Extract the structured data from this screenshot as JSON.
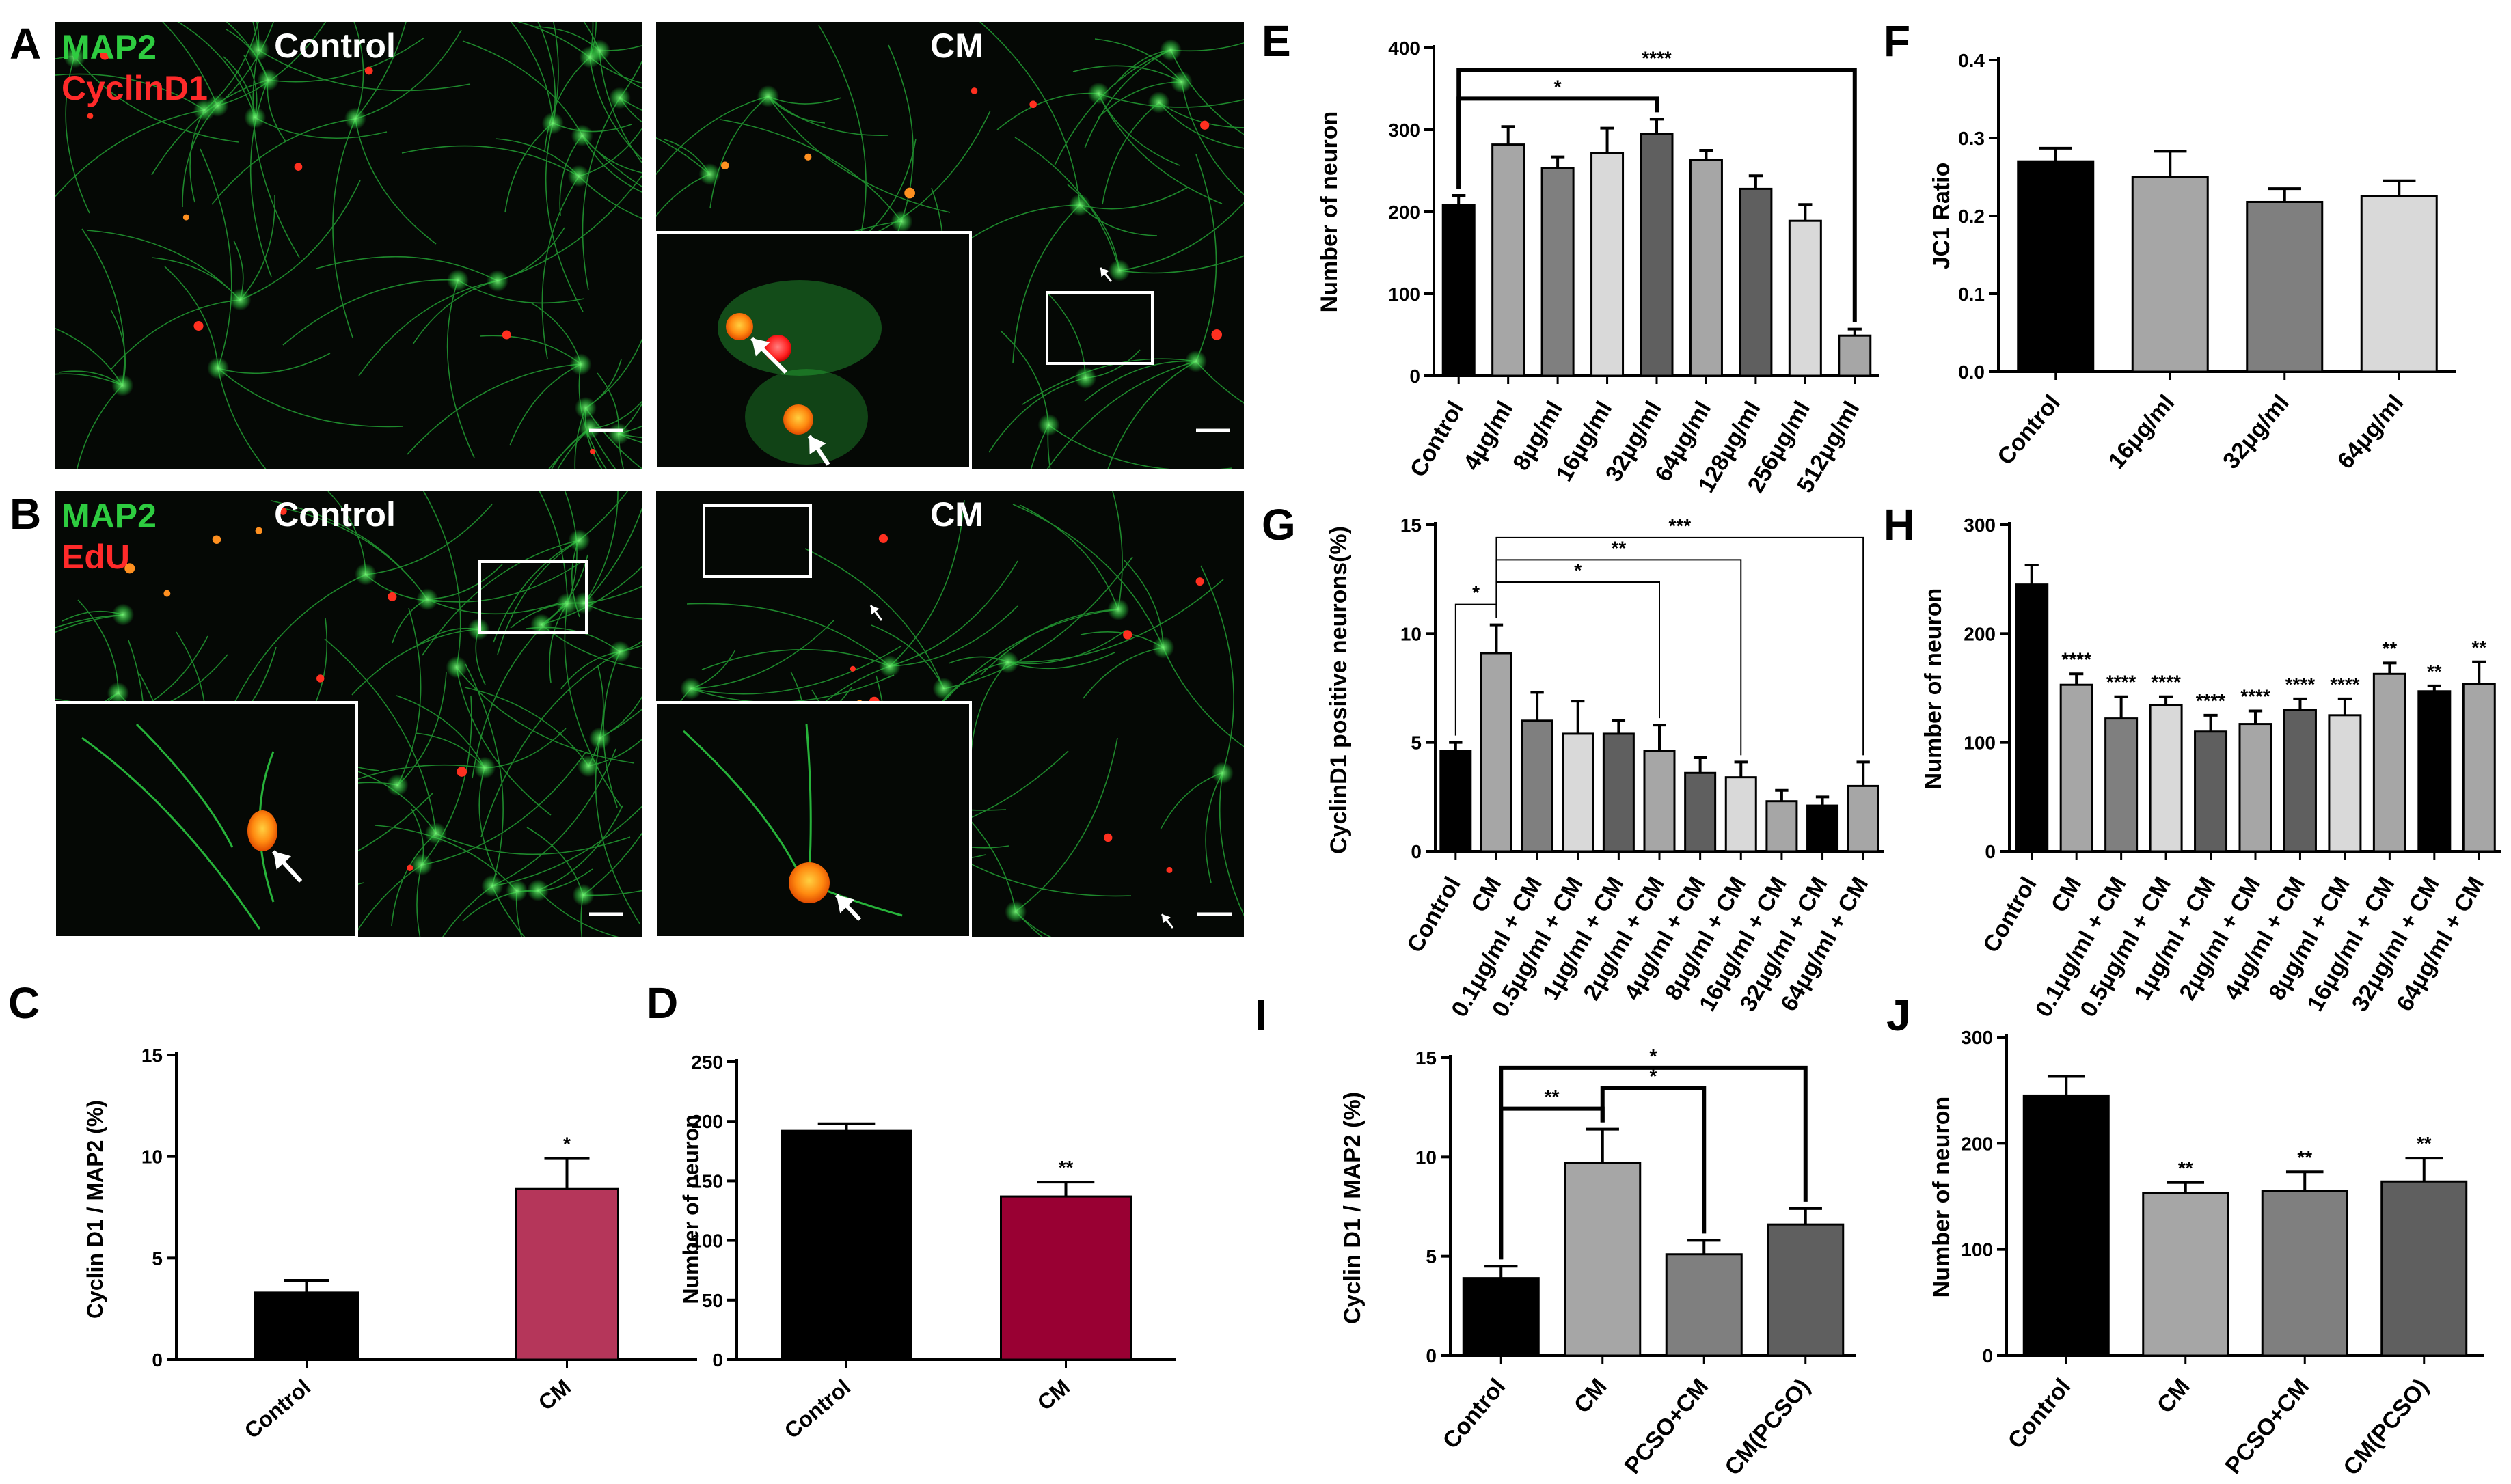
{
  "colors": {
    "black": "#000000",
    "gray1": "#a6a6a6",
    "gray2": "#7f7f7f",
    "gray3": "#d9d9d9",
    "gray4": "#5f5f5f",
    "pink": "#b5365a",
    "crimson": "#990033",
    "micro_bg": "#050805",
    "neuron_green": "#2ecc40",
    "nucleus_red": "#ff2020",
    "nucleus_orange": "#ff8a10"
  },
  "micrographs": {
    "A": {
      "letter": "A",
      "markers": [
        "MAP2",
        "CyclinD1"
      ],
      "marker_colors": [
        "#2ecc40",
        "#ff2a2a"
      ],
      "left_title": "Control",
      "right_title": "CM"
    },
    "B": {
      "letter": "B",
      "markers": [
        "MAP2",
        "EdU"
      ],
      "marker_colors": [
        "#2ecc40",
        "#ff2a2a"
      ],
      "left_title": "Control",
      "right_title": "CM"
    }
  },
  "chart_data": [
    {
      "panel": "C",
      "type": "bar",
      "ylabel": "Cyclin D1 / MAP2 (%)",
      "categories": [
        "Control",
        "CM"
      ],
      "values": [
        3.3,
        8.4
      ],
      "errors": [
        0.6,
        1.5
      ],
      "colors": [
        "#000000",
        "#b5365a"
      ],
      "ylim": [
        0,
        15
      ],
      "yticks": [
        0,
        5,
        10,
        15
      ],
      "stars": [
        "",
        "*"
      ]
    },
    {
      "panel": "D",
      "type": "bar",
      "ylabel": "Number of neuron",
      "categories": [
        "Control",
        "CM"
      ],
      "values": [
        192,
        137
      ],
      "errors": [
        6,
        12
      ],
      "colors": [
        "#000000",
        "#990033"
      ],
      "ylim": [
        0,
        250
      ],
      "yticks": [
        0,
        50,
        100,
        150,
        200,
        250
      ],
      "stars": [
        "",
        "**"
      ]
    },
    {
      "panel": "E",
      "type": "bar",
      "ylabel": "Number of neuron",
      "categories": [
        "Control",
        "4μg/ml",
        "8μg/ml",
        "16μg/ml",
        "32μg/ml",
        "64μg/ml",
        "128μg/ml",
        "256μg/ml",
        "512μg/ml"
      ],
      "values": [
        208,
        282,
        253,
        272,
        295,
        263,
        228,
        189,
        49
      ],
      "errors": [
        12,
        22,
        14,
        30,
        18,
        12,
        16,
        20,
        8
      ],
      "colors": [
        "#000000",
        "#a6a6a6",
        "#7f7f7f",
        "#d9d9d9",
        "#5f5f5f",
        "#a6a6a6",
        "#5f5f5f",
        "#d9d9d9",
        "#a6a6a6"
      ],
      "ylim": [
        0,
        400
      ],
      "yticks": [
        0,
        100,
        200,
        300,
        400
      ],
      "brackets": [
        {
          "from": 0,
          "to": 4,
          "label": "*"
        },
        {
          "from": 0,
          "to": 8,
          "label": "****"
        }
      ]
    },
    {
      "panel": "F",
      "type": "bar",
      "ylabel": "JC1 Ratio",
      "categories": [
        "Control",
        "16μg/ml",
        "32μg/ml",
        "64μg/ml"
      ],
      "values": [
        0.27,
        0.25,
        0.218,
        0.225
      ],
      "errors": [
        0.017,
        0.033,
        0.017,
        0.02
      ],
      "colors": [
        "#000000",
        "#a6a6a6",
        "#7f7f7f",
        "#d9d9d9"
      ],
      "ylim": [
        0,
        0.4
      ],
      "yticks": [
        0.0,
        0.1,
        0.2,
        0.3,
        0.4
      ],
      "ytick_decimals": 1
    },
    {
      "panel": "G",
      "type": "bar",
      "ylabel": "CyclinD1 positive neurons(%)",
      "categories": [
        "Control",
        "CM",
        "0.1μg/ml + CM",
        "0.5μg/ml + CM",
        "1μg/ml + CM",
        "2μg/ml + CM",
        "4μg/ml + CM",
        "8μg/ml + CM",
        "16μg/ml + CM",
        "32μg/ml + CM",
        "64μg/ml + CM"
      ],
      "values": [
        4.6,
        9.1,
        6.0,
        5.4,
        5.4,
        4.6,
        3.6,
        3.4,
        2.3,
        2.1,
        3.0
      ],
      "errors": [
        0.4,
        1.3,
        1.3,
        1.5,
        0.6,
        1.2,
        0.7,
        0.7,
        0.5,
        0.4,
        1.1
      ],
      "colors": [
        "#000000",
        "#a6a6a6",
        "#7f7f7f",
        "#d9d9d9",
        "#5f5f5f",
        "#a6a6a6",
        "#5f5f5f",
        "#d9d9d9",
        "#a6a6a6",
        "#000000",
        "#a6a6a6"
      ],
      "ylim": [
        0,
        15
      ],
      "yticks": [
        0,
        5,
        10,
        15
      ],
      "brackets": [
        {
          "from": 0,
          "to": 1,
          "label": "*"
        },
        {
          "from": 1,
          "to": 5,
          "label": "*"
        },
        {
          "from": 1,
          "to": 7,
          "label": "**"
        },
        {
          "from": 1,
          "to": 10,
          "label": "***"
        }
      ]
    },
    {
      "panel": "H",
      "type": "bar",
      "ylabel": "Number of neuron",
      "categories": [
        "Control",
        "CM",
        "0.1μg/ml + CM",
        "0.5μg/ml + CM",
        "1μg/ml + CM",
        "2μg/ml + CM",
        "4μg/ml + CM",
        "8μg/ml + CM",
        "16μg/ml + CM",
        "32μg/ml + CM",
        "64μg/ml + CM"
      ],
      "values": [
        245,
        153,
        122,
        134,
        110,
        117,
        130,
        125,
        163,
        147,
        154
      ],
      "errors": [
        18,
        10,
        20,
        8,
        15,
        12,
        10,
        15,
        10,
        5,
        20
      ],
      "colors": [
        "#000000",
        "#a6a6a6",
        "#7f7f7f",
        "#d9d9d9",
        "#5f5f5f",
        "#a6a6a6",
        "#5f5f5f",
        "#d9d9d9",
        "#a6a6a6",
        "#000000",
        "#a6a6a6"
      ],
      "ylim": [
        0,
        300
      ],
      "yticks": [
        0,
        100,
        200,
        300
      ],
      "stars": [
        "",
        "****",
        "****",
        "****",
        "****",
        "****",
        "****",
        "****",
        "**",
        "**",
        "**"
      ]
    },
    {
      "panel": "I",
      "type": "bar",
      "ylabel": "Cyclin D1 / MAP2 (%)",
      "categories": [
        "Control",
        "CM",
        "PCSO+CM",
        "CM(PCSO)"
      ],
      "values": [
        3.9,
        9.7,
        5.1,
        6.6
      ],
      "errors": [
        0.6,
        1.7,
        0.7,
        0.8
      ],
      "colors": [
        "#000000",
        "#a6a6a6",
        "#7f7f7f",
        "#5f5f5f"
      ],
      "ylim": [
        0,
        15
      ],
      "yticks": [
        0,
        5,
        10,
        15
      ],
      "brackets": [
        {
          "from": 0,
          "to": 1,
          "label": "**"
        },
        {
          "from": 1,
          "to": 2,
          "label": "*"
        },
        {
          "from": 0,
          "to": 3,
          "label": "*"
        }
      ]
    },
    {
      "panel": "J",
      "type": "bar",
      "ylabel": "Number of neuron",
      "categories": [
        "Control",
        "CM",
        "PCSO+CM",
        "CM(PCSO)"
      ],
      "values": [
        245,
        153,
        155,
        164
      ],
      "errors": [
        18,
        10,
        18,
        22
      ],
      "colors": [
        "#000000",
        "#a6a6a6",
        "#7f7f7f",
        "#5f5f5f"
      ],
      "ylim": [
        0,
        300
      ],
      "yticks": [
        0,
        100,
        200,
        300
      ],
      "stars": [
        "",
        "**",
        "**",
        "**"
      ]
    }
  ]
}
